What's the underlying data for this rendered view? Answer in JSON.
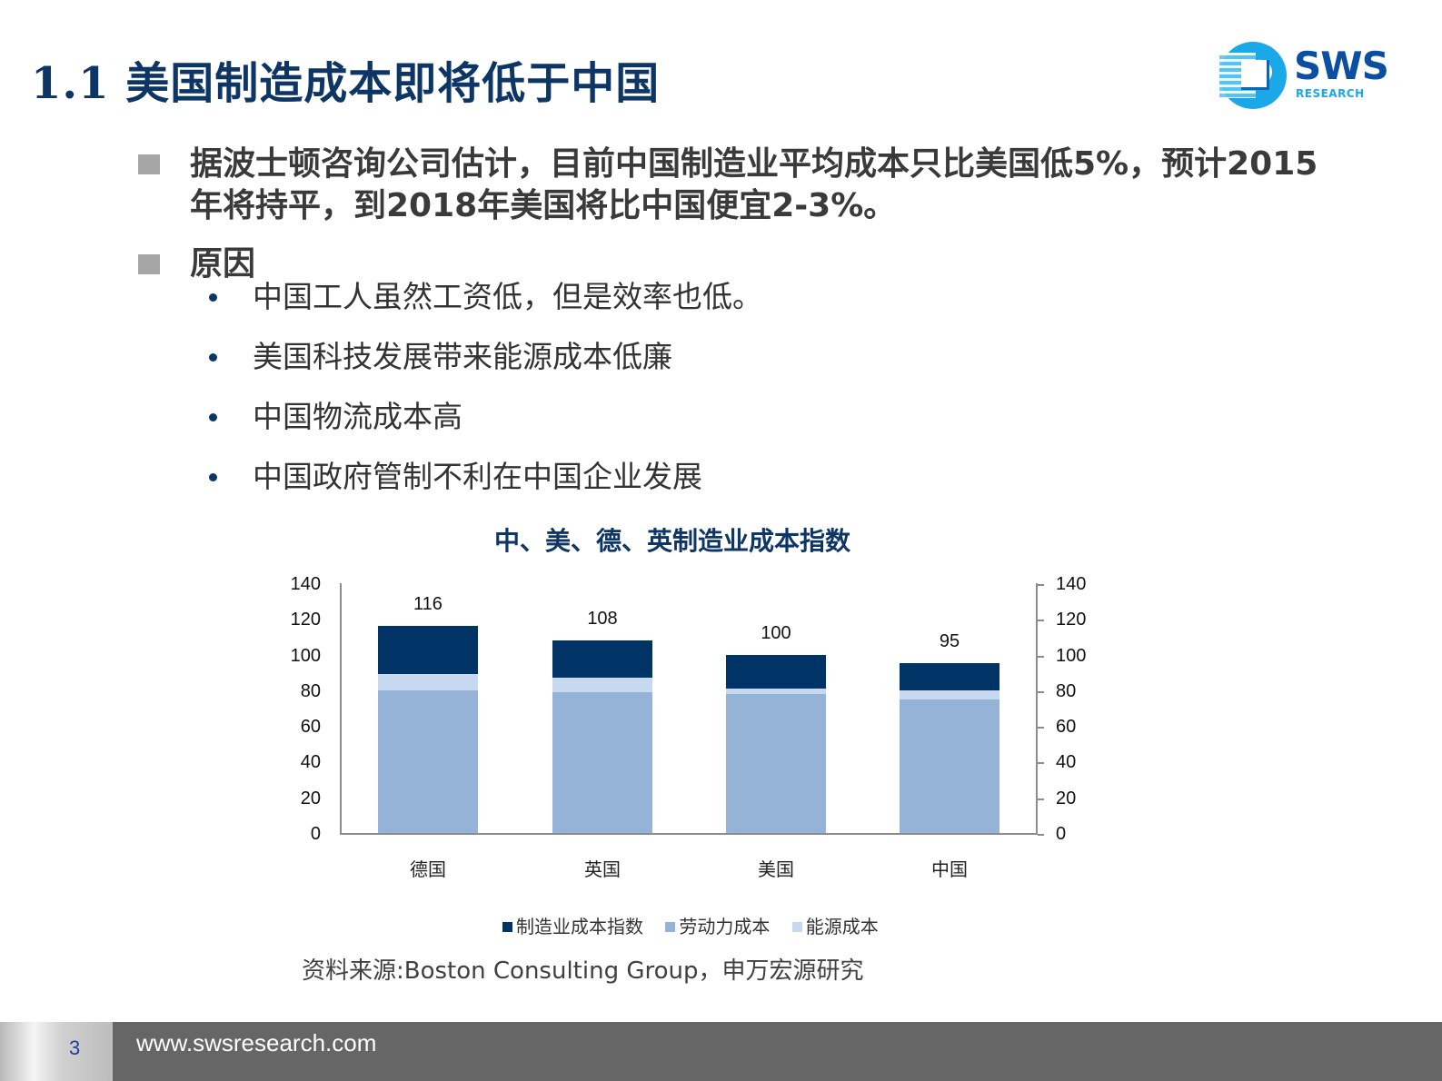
{
  "slide": {
    "title": "1.1 美国制造成本即将低于中国",
    "logo": {
      "main": "SWS",
      "sub": "RESEARCH"
    },
    "bullets": [
      {
        "text": "据波士顿咨询公司估计，目前中国制造业平均成本只比美国低5%，预计2015年将持平，到2018年美国将比中国便宜2-3%。"
      },
      {
        "text": "原因"
      }
    ],
    "sub_bullets": [
      {
        "text": "中国工人虽然工资低，但是效率也低。"
      },
      {
        "text": "美国科技发展带来能源成本低廉"
      },
      {
        "text": "中国物流成本高"
      },
      {
        "text": "中国政府管制不利在中国企业发展"
      }
    ],
    "source": "资料来源:Boston Consulting Group，申万宏源研究",
    "footer": {
      "page": "3",
      "url": "www.swsresearch.com"
    }
  },
  "colors": {
    "title": "#0d3566",
    "manufacturing": "#003366",
    "labor": "#95b3d7",
    "energy": "#c6d9f0",
    "footer_bg": "#666666",
    "bullet_square": "#a6a6a6"
  },
  "chart_data": {
    "type": "bar",
    "stacked": true,
    "title": "中、美、德、英制造业成本指数",
    "categories": [
      "德国",
      "英国",
      "美国",
      "中国"
    ],
    "series": [
      {
        "name": "劳动力成本",
        "values": [
          80,
          79,
          78,
          75
        ],
        "color": "#95b3d7"
      },
      {
        "name": "能源成本",
        "values": [
          9,
          8,
          3,
          5
        ],
        "color": "#c6d9f0"
      },
      {
        "name": "制造业成本指数",
        "values": [
          27,
          21,
          19,
          15
        ],
        "color": "#003366"
      }
    ],
    "totals": [
      116,
      108,
      100,
      95
    ],
    "data_labels": [
      "116",
      "108",
      "100",
      "95"
    ],
    "legend": [
      "制造业成本指数",
      "劳动力成本",
      "能源成本"
    ],
    "legend_position": "bottom",
    "yticks": [
      "0",
      "20",
      "40",
      "60",
      "80",
      "100",
      "120",
      "140"
    ],
    "ylim": [
      0,
      140
    ],
    "secondary_yaxis": true,
    "grid": false,
    "xlabel": "",
    "ylabel": ""
  }
}
